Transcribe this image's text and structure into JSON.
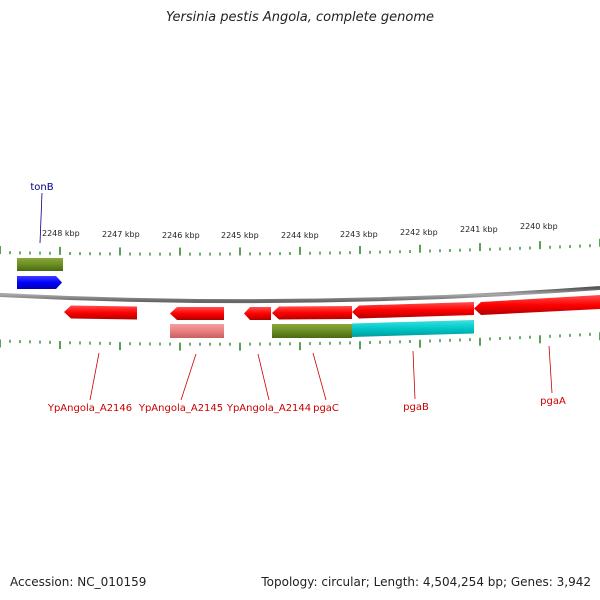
{
  "title": "Yersinia pestis Angola, complete genome",
  "footer": {
    "accession": "Accession: NC_010159",
    "summary": "Topology: circular; Length: 4,504,254 bp; Genes: 3,942"
  },
  "colors": {
    "forward_gene": "#0000ff",
    "reverse_gene": "#ff0000",
    "pseudo_gene": "#e88080",
    "green_feature": "#6b8e23",
    "cyan_feature": "#00c8c8",
    "backbone": "#888888",
    "ticks": "#2e8b2e",
    "label_red": "#cc0000",
    "label_blue": "#000080"
  },
  "scale": {
    "labels": [
      "2248 kbp",
      "2247 kbp",
      "2246 kbp",
      "2245 kbp",
      "2244 kbp",
      "2243 kbp",
      "2242 kbp",
      "2241 kbp",
      "2240 kbp"
    ]
  },
  "genes": [
    {
      "name": "tonB",
      "strand": "forward",
      "color": "blue"
    },
    {
      "name": "YpAngola_A2146",
      "strand": "reverse",
      "color": "red"
    },
    {
      "name": "YpAngola_A2145",
      "strand": "reverse",
      "color": "red"
    },
    {
      "name": "YpAngola_A2144",
      "strand": "reverse",
      "color": "red"
    },
    {
      "name": "pgaC",
      "strand": "reverse",
      "color": "red"
    },
    {
      "name": "pgaB",
      "strand": "reverse",
      "color": "red"
    },
    {
      "name": "pgaA",
      "strand": "reverse",
      "color": "red"
    }
  ]
}
